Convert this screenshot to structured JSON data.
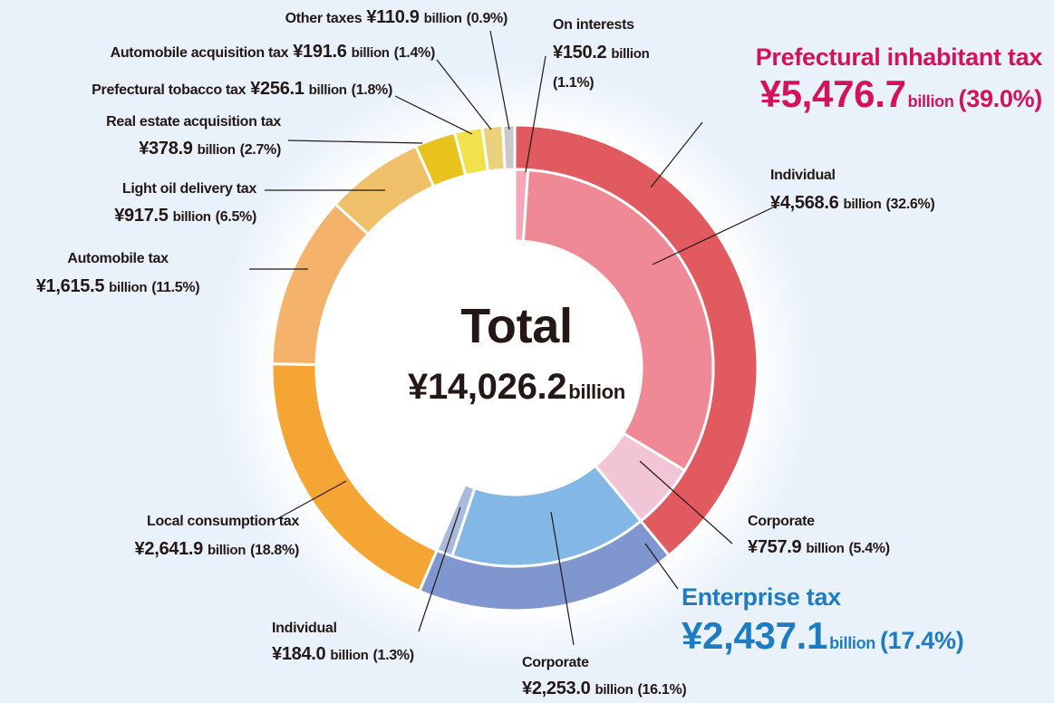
{
  "chart_data": {
    "type": "nested-donut",
    "center_title": "Total",
    "total": 14026.2,
    "total_label": "¥14,026.2",
    "unit": "billion",
    "outer": {
      "categories": [
        "Prefectural inhabitant tax",
        "Enterprise tax",
        "Local consumption tax",
        "Automobile tax",
        "Light oil delivery tax",
        "Real estate acquisition tax",
        "Prefectural tobacco tax",
        "Automobile acquisition tax",
        "Other taxes"
      ],
      "values": [
        5476.7,
        2437.1,
        2641.9,
        1615.5,
        917.5,
        378.9,
        256.1,
        191.6,
        110.9
      ],
      "value_labels": [
        "¥5,476.7",
        "¥2,437.1",
        "¥2,641.9",
        "¥1,615.5",
        "¥917.5",
        "¥378.9",
        "¥256.1",
        "¥191.6",
        "¥110.9"
      ],
      "share_labels": [
        "(39.0%)",
        "(17.4%)",
        "(18.8%)",
        "(11.5%)",
        "(6.5%)",
        "(2.7%)",
        "(1.8%)",
        "(1.4%)",
        "(0.9%)"
      ],
      "colors": [
        "#e15a60",
        "#7f96cf",
        "#f4a534",
        "#f5b26b",
        "#efbf6a",
        "#e9c21b",
        "#f1e24c",
        "#e9d17d",
        "#c8c8c8"
      ]
    },
    "inner": {
      "categories": [
        "On interests",
        "Individual",
        "Corporate",
        "Corporate",
        "Individual"
      ],
      "values": [
        150.2,
        4568.6,
        757.9,
        2253.0,
        184.0
      ],
      "value_labels": [
        "¥150.2",
        "¥4,568.6",
        "¥757.9",
        "¥2,253.0",
        "¥184.0"
      ],
      "share_labels": [
        "(1.1%)",
        "(32.6%)",
        "(5.4%)",
        "(16.1%)",
        "(1.3%)"
      ],
      "colors": [
        "#f3a7b8",
        "#ef8995",
        "#f2c5d6",
        "#83b7e5",
        "#a9badd"
      ]
    }
  }
}
